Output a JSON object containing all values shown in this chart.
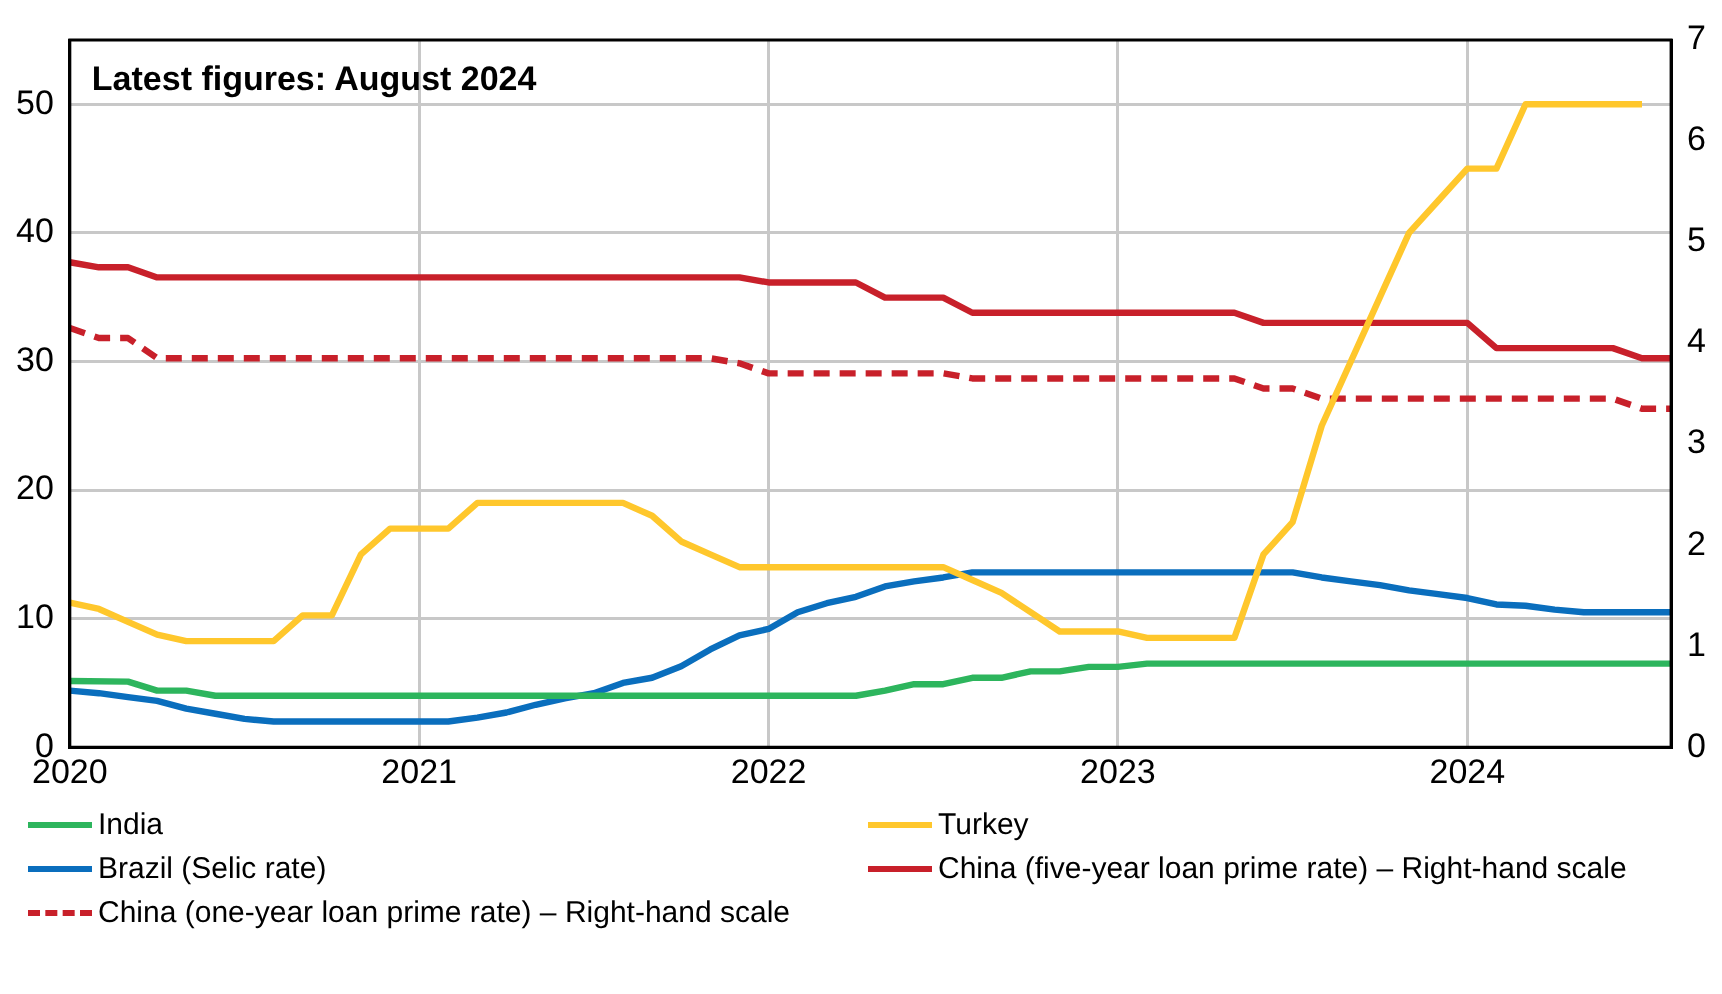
{
  "chart_data": {
    "type": "line",
    "annotations": [
      "Latest figures: August 2024"
    ],
    "xlim": [
      "2020-01",
      "2024-08"
    ],
    "xticks": [
      "2020",
      "2021",
      "2022",
      "2023",
      "2024"
    ],
    "ylim": [
      0,
      55
    ],
    "yticks": [
      0,
      10,
      20,
      30,
      40,
      50
    ],
    "y2lim": [
      0,
      7
    ],
    "y2ticks": [
      0,
      1,
      2,
      3,
      4,
      5,
      6,
      7
    ],
    "grid": true,
    "legend": "bottom",
    "marker": "none",
    "series": [
      {
        "name": "India",
        "color": "#2db55d",
        "x": [
          "2020-01",
          "2020-03",
          "2020-04",
          "2020-05",
          "2020-06",
          "2022-04",
          "2022-05",
          "2022-06",
          "2022-07",
          "2022-08",
          "2022-09",
          "2022-10",
          "2022-11",
          "2022-12",
          "2023-01",
          "2023-02",
          "2024-08"
        ],
        "values": [
          5.15,
          5.1,
          4.4,
          4.4,
          4.0,
          4.0,
          4.4,
          4.9,
          4.9,
          5.4,
          5.4,
          5.9,
          5.9,
          6.25,
          6.25,
          6.5,
          6.5
        ]
      },
      {
        "name": "Turkey",
        "color": "#ffc72c",
        "x": [
          "2020-01",
          "2020-02",
          "2020-03",
          "2020-04",
          "2020-05",
          "2020-08",
          "2020-09",
          "2020-10",
          "2020-11",
          "2020-12",
          "2021-02",
          "2021-03",
          "2021-08",
          "2021-09",
          "2021-10",
          "2021-11",
          "2021-12",
          "2022-07",
          "2022-08",
          "2022-09",
          "2022-10",
          "2022-11",
          "2023-01",
          "2023-02",
          "2023-05",
          "2023-06",
          "2023-07",
          "2023-08",
          "2023-09",
          "2023-10",
          "2023-11",
          "2023-12",
          "2024-01",
          "2024-02",
          "2024-03",
          "2024-07"
        ],
        "values": [
          11.25,
          10.75,
          9.75,
          8.75,
          8.25,
          8.25,
          10.25,
          10.25,
          15,
          17,
          17,
          19,
          19,
          18,
          16,
          15,
          14,
          14,
          13,
          12,
          10.5,
          9,
          9,
          8.5,
          8.5,
          15,
          17.5,
          25,
          30,
          35,
          40,
          42.5,
          45,
          45,
          50,
          50
        ]
      },
      {
        "name": "Brazil (Selic rate)",
        "color": "#0a6ebd",
        "x": [
          "2020-01",
          "2020-02",
          "2020-03",
          "2020-04",
          "2020-05",
          "2020-06",
          "2020-07",
          "2020-08",
          "2021-02",
          "2021-03",
          "2021-04",
          "2021-05",
          "2021-06",
          "2021-07",
          "2021-08",
          "2021-09",
          "2021-10",
          "2021-11",
          "2021-12",
          "2022-01",
          "2022-02",
          "2022-03",
          "2022-04",
          "2022-05",
          "2022-06",
          "2022-07",
          "2022-08",
          "2023-07",
          "2023-08",
          "2023-09",
          "2023-10",
          "2023-11",
          "2023-12",
          "2024-01",
          "2024-02",
          "2024-03",
          "2024-04",
          "2024-05",
          "2024-08"
        ],
        "values": [
          4.4,
          4.2,
          3.9,
          3.6,
          3.0,
          2.6,
          2.2,
          2.0,
          2.0,
          2.3,
          2.7,
          3.3,
          3.8,
          4.2,
          5.0,
          5.4,
          6.3,
          7.6,
          8.7,
          9.2,
          10.5,
          11.2,
          11.7,
          12.5,
          12.9,
          13.2,
          13.6,
          13.6,
          13.2,
          12.9,
          12.6,
          12.2,
          11.9,
          11.6,
          11.1,
          11.0,
          10.7,
          10.5,
          10.5
        ]
      },
      {
        "name": "China (five-year loan prime rate) – Right-hand scale",
        "color": "#c8202a",
        "axis": "y2",
        "line_style": "solid",
        "x": [
          "2020-01",
          "2020-02",
          "2020-03",
          "2020-04",
          "2021-12",
          "2022-01",
          "2022-04",
          "2022-05",
          "2022-07",
          "2022-08",
          "2023-05",
          "2023-06",
          "2024-01",
          "2024-02",
          "2024-06",
          "2024-07",
          "2024-08"
        ],
        "values": [
          4.8,
          4.75,
          4.75,
          4.65,
          4.65,
          4.6,
          4.6,
          4.45,
          4.45,
          4.3,
          4.3,
          4.2,
          4.2,
          3.95,
          3.95,
          3.85,
          3.85
        ]
      },
      {
        "name": "China (one-year loan prime rate) – Right-hand scale",
        "color": "#c8202a",
        "axis": "y2",
        "line_style": "dashed",
        "x": [
          "2020-01",
          "2020-02",
          "2020-03",
          "2020-04",
          "2021-11",
          "2021-12",
          "2022-01",
          "2022-07",
          "2022-08",
          "2023-05",
          "2023-06",
          "2023-07",
          "2023-08",
          "2024-06",
          "2024-07",
          "2024-08"
        ],
        "values": [
          4.15,
          4.05,
          4.05,
          3.85,
          3.85,
          3.8,
          3.7,
          3.7,
          3.65,
          3.65,
          3.55,
          3.55,
          3.45,
          3.45,
          3.35,
          3.35
        ]
      }
    ]
  }
}
